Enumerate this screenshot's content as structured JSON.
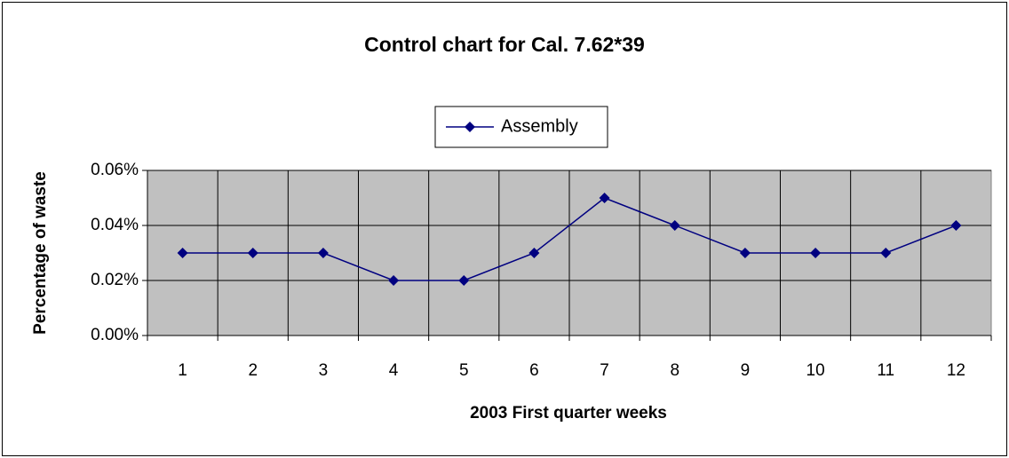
{
  "chart_data": {
    "type": "line",
    "title": "Control chart for Cal. 7.62*39",
    "x_label": "2003 First quarter weeks",
    "y_label": "Percentage of waste",
    "categories": [
      1,
      2,
      3,
      4,
      5,
      6,
      7,
      8,
      9,
      10,
      11,
      12
    ],
    "series": [
      {
        "name": "Assembly",
        "color": "#000080",
        "values": [
          0.03,
          0.03,
          0.03,
          0.02,
          0.02,
          0.03,
          0.05,
          0.04,
          0.03,
          0.03,
          0.03,
          0.04
        ]
      }
    ],
    "ylim": [
      0,
      0.06
    ],
    "yticks": [
      {
        "value": 0,
        "label": "0.00%"
      },
      {
        "value": 0.02,
        "label": "0.02%"
      },
      {
        "value": 0.04,
        "label": "0.04%"
      },
      {
        "value": 0.06,
        "label": "0.06%"
      }
    ],
    "grid": true,
    "legend": "top",
    "plot_background": "#c0c0c0"
  }
}
